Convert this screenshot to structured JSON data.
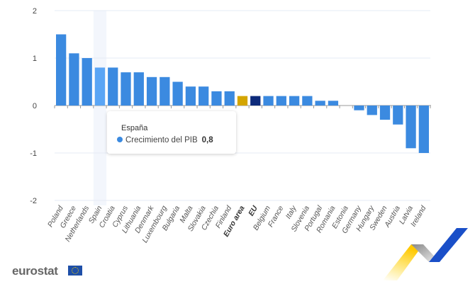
{
  "chart_data": {
    "type": "bar",
    "title": "",
    "xlabel": "",
    "ylabel": "",
    "ylim": [
      -2,
      2
    ],
    "yticks": [
      2,
      1,
      0,
      -1,
      -2
    ],
    "grid": true,
    "categories": [
      "Poland",
      "Greece",
      "Netherlands",
      "Spain",
      "Croatia",
      "Cyprus",
      "Lithuania",
      "Denmark",
      "Luxembourg",
      "Bulgaria",
      "Malta",
      "Slovakia",
      "Czechia",
      "Finland",
      "Euro area",
      "EU",
      "Belgium",
      "France",
      "Italy",
      "Slovenia",
      "Portugal",
      "Romania",
      "Estonia",
      "Germany",
      "Hungary",
      "Sweden",
      "Austria",
      "Latvia",
      "Ireland"
    ],
    "bold_categories": [
      "Euro area",
      "EU"
    ],
    "series": [
      {
        "name": "Crecimiento del PIB",
        "values": [
          1.5,
          1.1,
          1.0,
          0.8,
          0.8,
          0.7,
          0.7,
          0.6,
          0.6,
          0.5,
          0.4,
          0.4,
          0.3,
          0.3,
          0.2,
          0.2,
          0.2,
          0.2,
          0.2,
          0.2,
          0.1,
          0.1,
          0.0,
          -0.1,
          -0.2,
          -0.3,
          -0.4,
          -0.9,
          -1.0
        ]
      }
    ],
    "colors": {
      "default": "#3b8ae0",
      "highlight": "#5aa5f5",
      "euro_area": "#d4a500",
      "eu": "#0d2a7a"
    },
    "highlighted": "Spain"
  },
  "tooltip": {
    "title": "España",
    "series": "Crecimiento del PIB",
    "value": "0,8"
  },
  "logo": {
    "text": "eurostat"
  }
}
